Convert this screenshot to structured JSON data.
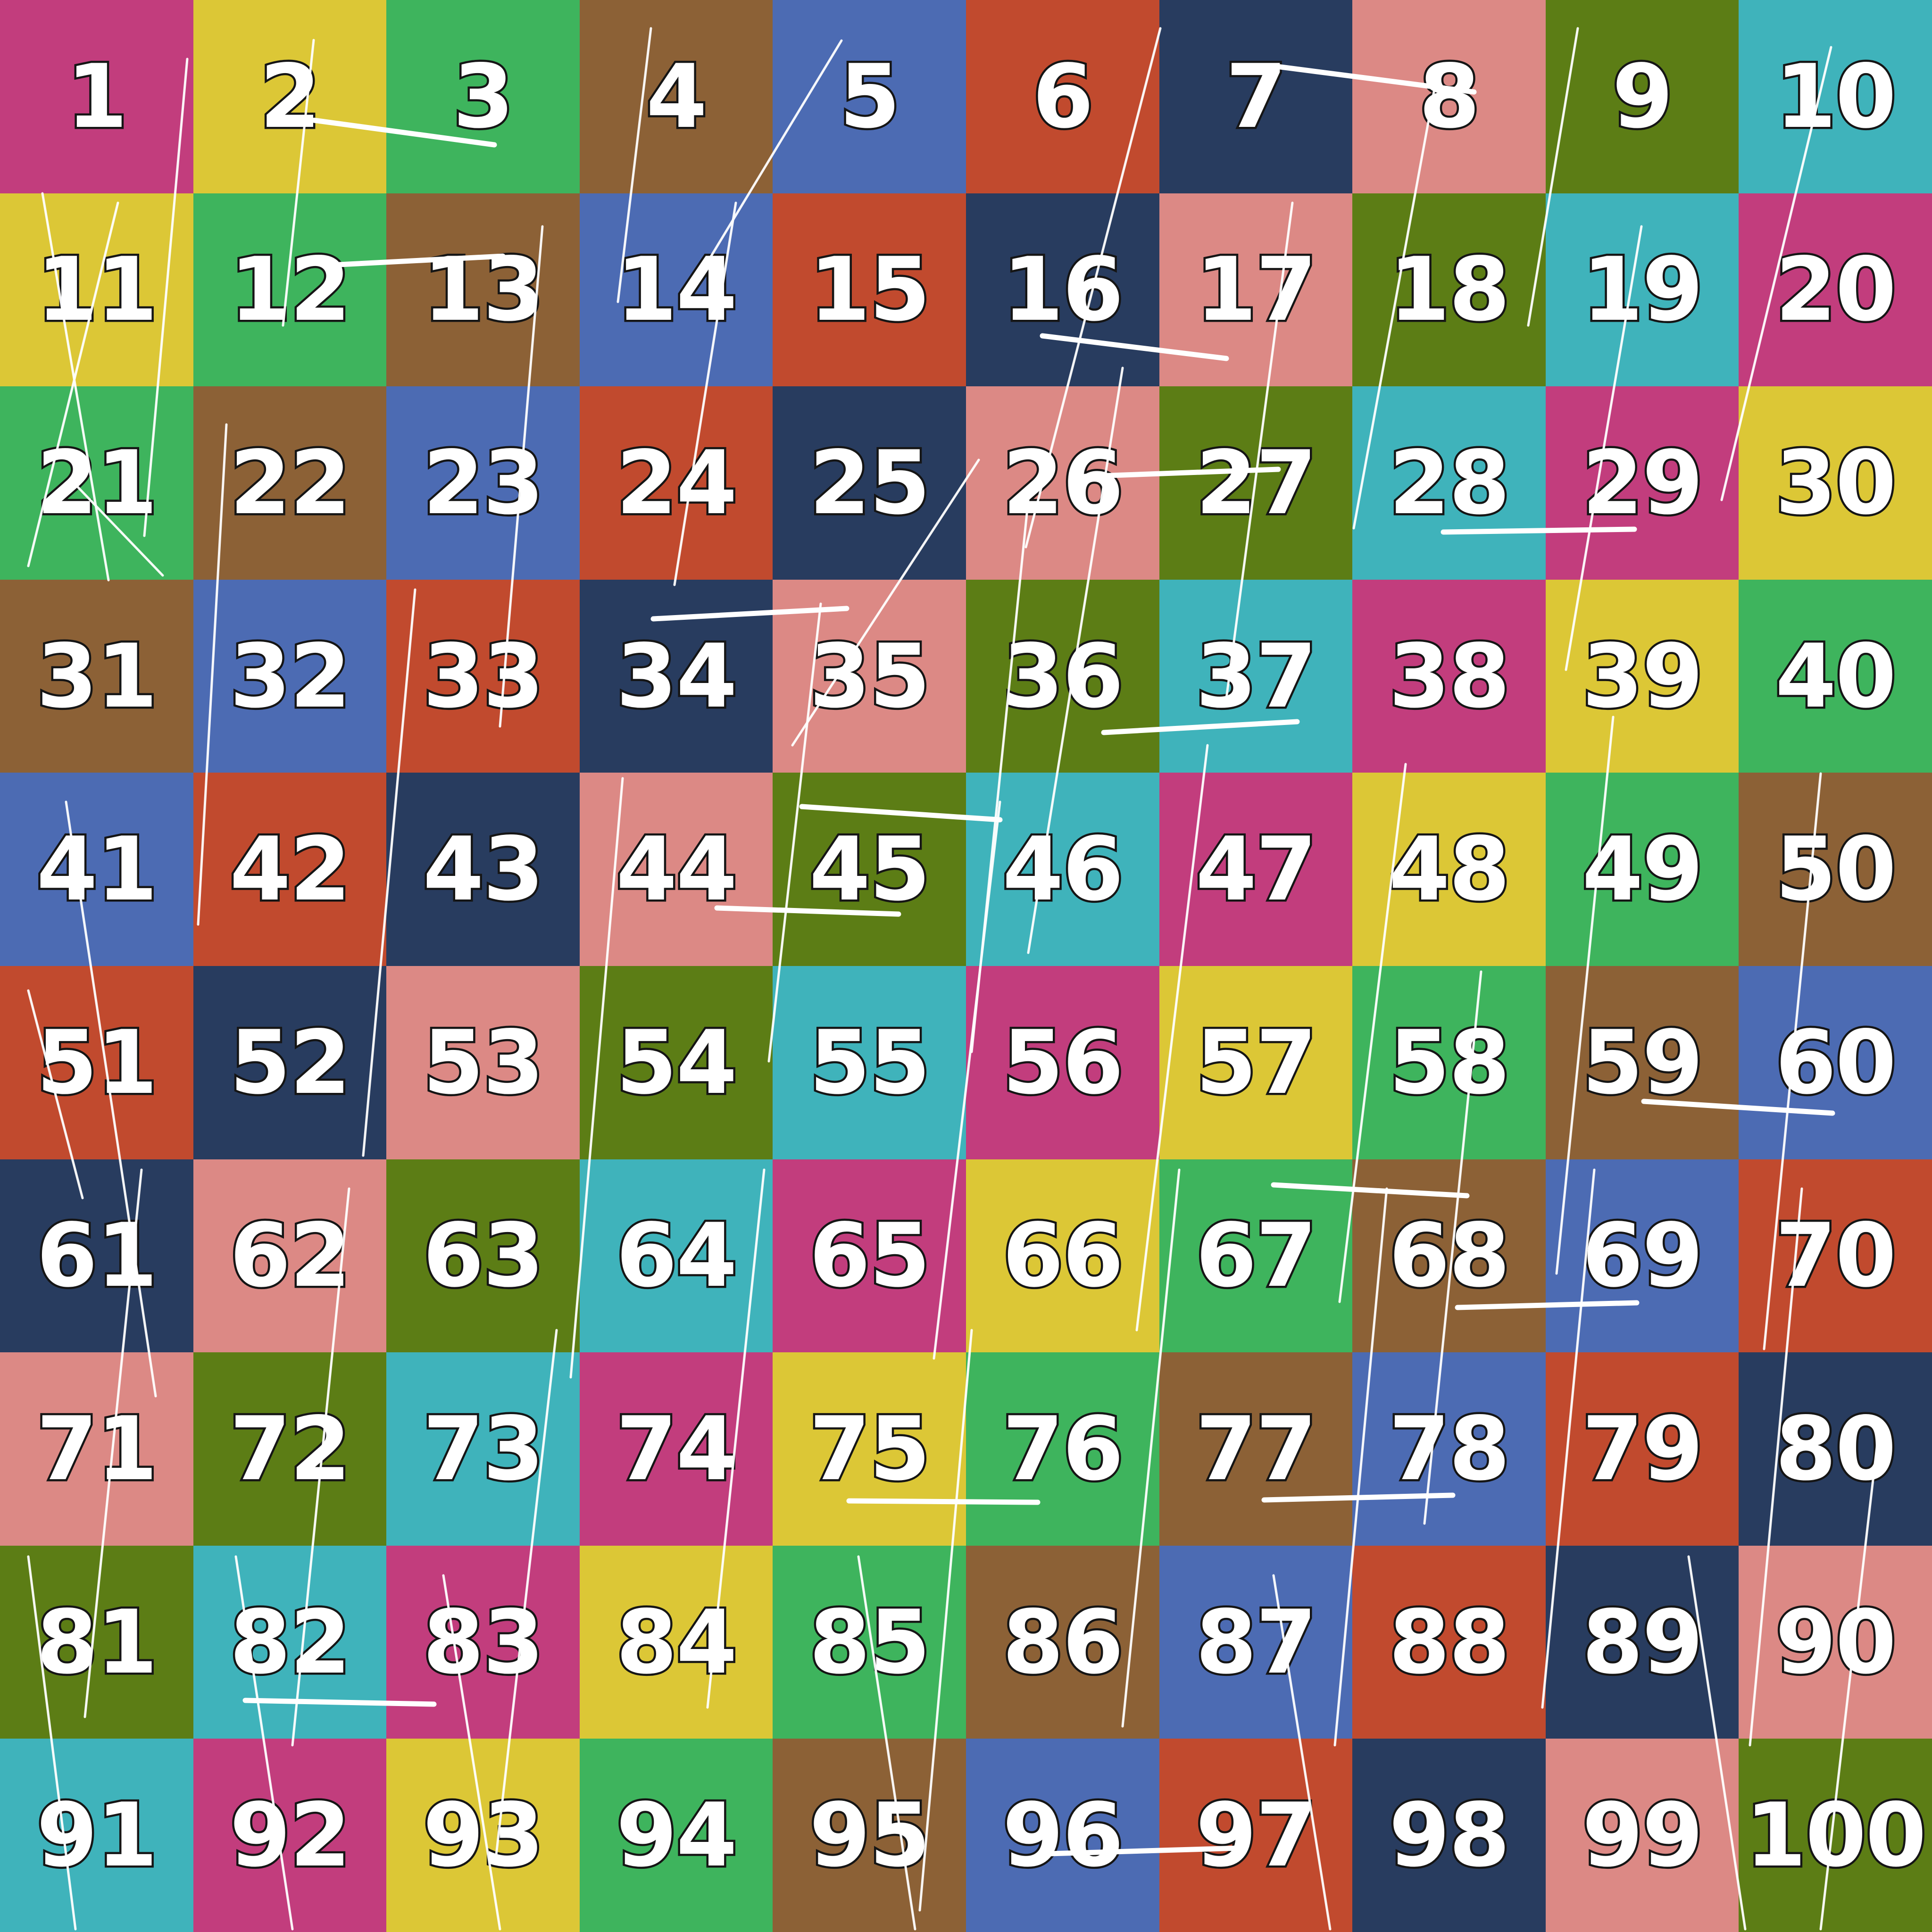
{
  "title": "Hundred chart 1-100",
  "text_style": {
    "number_fill": "#ffffff",
    "number_outline": "#151515"
  },
  "grid": {
    "rows": 10,
    "cols": 10,
    "palette": {
      "magenta": "#C23D7D",
      "yellow": "#DCC736",
      "green": "#3EB45D",
      "brown": "#8C6136",
      "blue": "#4C6BB3",
      "red": "#C14A2E",
      "navy": "#283C5F",
      "salmon": "#DC8985",
      "olive": "#5C7D15",
      "teal": "#3FB3BB"
    },
    "cells": [
      {
        "n": 1,
        "c": "magenta"
      },
      {
        "n": 2,
        "c": "yellow"
      },
      {
        "n": 3,
        "c": "green"
      },
      {
        "n": 4,
        "c": "brown"
      },
      {
        "n": 5,
        "c": "blue"
      },
      {
        "n": 6,
        "c": "red"
      },
      {
        "n": 7,
        "c": "navy"
      },
      {
        "n": 8,
        "c": "salmon"
      },
      {
        "n": 9,
        "c": "olive"
      },
      {
        "n": 10,
        "c": "teal"
      },
      {
        "n": 11,
        "c": "yellow"
      },
      {
        "n": 12,
        "c": "green"
      },
      {
        "n": 13,
        "c": "brown"
      },
      {
        "n": 14,
        "c": "blue"
      },
      {
        "n": 15,
        "c": "red"
      },
      {
        "n": 16,
        "c": "navy"
      },
      {
        "n": 17,
        "c": "salmon"
      },
      {
        "n": 18,
        "c": "olive"
      },
      {
        "n": 19,
        "c": "teal"
      },
      {
        "n": 20,
        "c": "magenta"
      },
      {
        "n": 21,
        "c": "green"
      },
      {
        "n": 22,
        "c": "brown"
      },
      {
        "n": 23,
        "c": "blue"
      },
      {
        "n": 24,
        "c": "red"
      },
      {
        "n": 25,
        "c": "navy"
      },
      {
        "n": 26,
        "c": "salmon"
      },
      {
        "n": 27,
        "c": "olive"
      },
      {
        "n": 28,
        "c": "teal"
      },
      {
        "n": 29,
        "c": "magenta"
      },
      {
        "n": 30,
        "c": "yellow"
      },
      {
        "n": 31,
        "c": "brown"
      },
      {
        "n": 32,
        "c": "blue"
      },
      {
        "n": 33,
        "c": "red"
      },
      {
        "n": 34,
        "c": "navy"
      },
      {
        "n": 35,
        "c": "salmon"
      },
      {
        "n": 36,
        "c": "olive"
      },
      {
        "n": 37,
        "c": "teal"
      },
      {
        "n": 38,
        "c": "magenta"
      },
      {
        "n": 39,
        "c": "yellow"
      },
      {
        "n": 40,
        "c": "green"
      },
      {
        "n": 41,
        "c": "blue"
      },
      {
        "n": 42,
        "c": "red"
      },
      {
        "n": 43,
        "c": "navy"
      },
      {
        "n": 44,
        "c": "salmon"
      },
      {
        "n": 45,
        "c": "olive"
      },
      {
        "n": 46,
        "c": "teal"
      },
      {
        "n": 47,
        "c": "magenta"
      },
      {
        "n": 48,
        "c": "yellow"
      },
      {
        "n": 49,
        "c": "green"
      },
      {
        "n": 50,
        "c": "brown"
      },
      {
        "n": 51,
        "c": "red"
      },
      {
        "n": 52,
        "c": "navy"
      },
      {
        "n": 53,
        "c": "salmon"
      },
      {
        "n": 54,
        "c": "olive"
      },
      {
        "n": 55,
        "c": "teal"
      },
      {
        "n": 56,
        "c": "magenta"
      },
      {
        "n": 57,
        "c": "yellow"
      },
      {
        "n": 58,
        "c": "green"
      },
      {
        "n": 59,
        "c": "brown"
      },
      {
        "n": 60,
        "c": "blue"
      },
      {
        "n": 61,
        "c": "navy"
      },
      {
        "n": 62,
        "c": "salmon"
      },
      {
        "n": 63,
        "c": "olive"
      },
      {
        "n": 64,
        "c": "teal"
      },
      {
        "n": 65,
        "c": "magenta"
      },
      {
        "n": 66,
        "c": "yellow"
      },
      {
        "n": 67,
        "c": "green"
      },
      {
        "n": 68,
        "c": "brown"
      },
      {
        "n": 69,
        "c": "blue"
      },
      {
        "n": 70,
        "c": "red"
      },
      {
        "n": 71,
        "c": "salmon"
      },
      {
        "n": 72,
        "c": "olive"
      },
      {
        "n": 73,
        "c": "teal"
      },
      {
        "n": 74,
        "c": "magenta"
      },
      {
        "n": 75,
        "c": "yellow"
      },
      {
        "n": 76,
        "c": "green"
      },
      {
        "n": 77,
        "c": "brown"
      },
      {
        "n": 78,
        "c": "blue"
      },
      {
        "n": 79,
        "c": "red"
      },
      {
        "n": 80,
        "c": "navy"
      },
      {
        "n": 81,
        "c": "olive"
      },
      {
        "n": 82,
        "c": "teal"
      },
      {
        "n": 83,
        "c": "magenta"
      },
      {
        "n": 84,
        "c": "yellow"
      },
      {
        "n": 85,
        "c": "green"
      },
      {
        "n": 86,
        "c": "brown"
      },
      {
        "n": 87,
        "c": "blue"
      },
      {
        "n": 88,
        "c": "red"
      },
      {
        "n": 89,
        "c": "navy"
      },
      {
        "n": 90,
        "c": "salmon"
      },
      {
        "n": 91,
        "c": "teal"
      },
      {
        "n": 92,
        "c": "magenta"
      },
      {
        "n": 93,
        "c": "yellow"
      },
      {
        "n": 94,
        "c": "green"
      },
      {
        "n": 95,
        "c": "brown"
      },
      {
        "n": 96,
        "c": "blue"
      },
      {
        "n": 97,
        "c": "red"
      },
      {
        "n": 98,
        "c": "navy"
      },
      {
        "n": 99,
        "c": "salmon"
      },
      {
        "n": 100,
        "c": "olive"
      }
    ]
  },
  "overlay": {
    "stroke_color": "#ffffff",
    "lines": [
      [
        2700,
        140,
        3125,
        195,
        11
      ],
      [
        666,
        255,
        1048,
        307,
        11
      ],
      [
        700,
        562,
        1066,
        543,
        11
      ],
      [
        2210,
        712,
        2600,
        760,
        11
      ],
      [
        2300,
        1010,
        2710,
        995,
        11
      ],
      [
        3060,
        1128,
        3465,
        1122,
        11
      ],
      [
        1385,
        1312,
        1795,
        1290,
        11
      ],
      [
        2340,
        1553,
        2750,
        1530,
        11
      ],
      [
        1700,
        1710,
        2120,
        1738,
        11
      ],
      [
        1520,
        1925,
        1905,
        1938,
        11
      ],
      [
        3485,
        2335,
        3885,
        2360,
        11
      ],
      [
        2700,
        2512,
        3110,
        2535,
        11
      ],
      [
        3090,
        2772,
        3470,
        2762,
        11
      ],
      [
        1800,
        3182,
        2200,
        3185,
        11
      ],
      [
        2680,
        3180,
        3080,
        3170,
        11
      ],
      [
        520,
        3605,
        920,
        3613,
        11
      ],
      [
        2225,
        3930,
        2630,
        3918,
        11
      ],
      [
        397,
        125,
        306,
        1136,
        5
      ],
      [
        149,
        1016,
        345,
        1220,
        5
      ],
      [
        140,
        1700,
        330,
        2960,
        5
      ],
      [
        60,
        2100,
        175,
        2540,
        5
      ],
      [
        665,
        85,
        600,
        690,
        5
      ],
      [
        1784,
        86,
        1455,
        630,
        5
      ],
      [
        2075,
        975,
        1680,
        1580,
        5
      ],
      [
        2460,
        60,
        2175,
        1160,
        5
      ],
      [
        3050,
        140,
        2870,
        1120,
        5
      ],
      [
        3345,
        60,
        3240,
        690,
        5
      ],
      [
        3882,
        100,
        3650,
        1060,
        5
      ],
      [
        1150,
        480,
        1060,
        1540,
        5
      ],
      [
        1560,
        430,
        1430,
        1240,
        5
      ],
      [
        2380,
        780,
        2180,
        2020,
        5
      ],
      [
        2740,
        430,
        2600,
        1480,
        5
      ],
      [
        3480,
        480,
        3320,
        1420,
        5
      ],
      [
        480,
        900,
        420,
        1960,
        5
      ],
      [
        880,
        1250,
        770,
        2450,
        5
      ],
      [
        1320,
        1650,
        1210,
        2920,
        5
      ],
      [
        1740,
        1280,
        1630,
        2250,
        5
      ],
      [
        2120,
        1700,
        1980,
        2880,
        5
      ],
      [
        2560,
        1580,
        2410,
        2820,
        5
      ],
      [
        2980,
        1620,
        2840,
        2760,
        5
      ],
      [
        3420,
        1520,
        3300,
        2700,
        5
      ],
      [
        3860,
        1640,
        3740,
        2860,
        5
      ],
      [
        300,
        2480,
        180,
        3640,
        5
      ],
      [
        740,
        2520,
        620,
        3700,
        5
      ],
      [
        1180,
        2820,
        1050,
        3950,
        5
      ],
      [
        1620,
        2480,
        1500,
        3620,
        5
      ],
      [
        2060,
        2820,
        1950,
        4050,
        5
      ],
      [
        2500,
        2480,
        2380,
        3660,
        5
      ],
      [
        2940,
        2520,
        2830,
        3700,
        5
      ],
      [
        3380,
        2480,
        3270,
        3620,
        5
      ],
      [
        3820,
        2520,
        3710,
        3700,
        5
      ],
      [
        500,
        3300,
        620,
        4090,
        5
      ],
      [
        940,
        3340,
        1060,
        4090,
        5
      ],
      [
        1820,
        3300,
        1940,
        4090,
        5
      ],
      [
        2700,
        3340,
        2820,
        4090,
        5
      ],
      [
        3580,
        3300,
        3700,
        4090,
        5
      ],
      [
        1380,
        60,
        1310,
        640,
        5
      ],
      [
        2180,
        1060,
        2060,
        2230,
        5
      ],
      [
        3140,
        2060,
        3020,
        3230,
        5
      ],
      [
        3980,
        3060,
        3860,
        4090,
        5
      ],
      [
        60,
        3300,
        160,
        4090,
        5
      ],
      [
        90,
        410,
        230,
        1230,
        5
      ],
      [
        250,
        430,
        60,
        1200,
        5
      ]
    ]
  }
}
